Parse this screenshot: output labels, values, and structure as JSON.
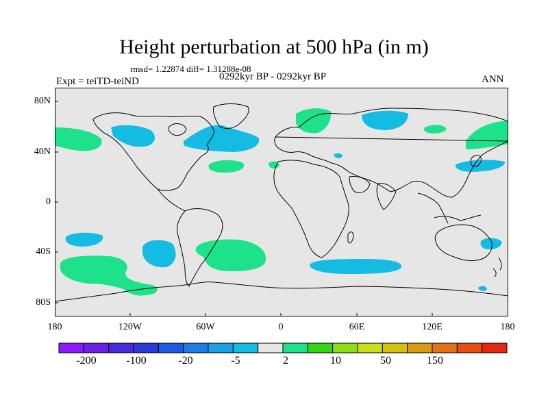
{
  "header": {
    "title": "Height perturbation at 500 hPa (in m)",
    "stats": "rmsd= 1.22874 diff= 1.31288e-08",
    "experiment": "Expt = teiTD-teiND",
    "period": "0292kyr BP - 0292kyr BP",
    "season": "ANN"
  },
  "axes": {
    "lat_labels": [
      "80N",
      "40N",
      "0",
      "40S",
      "80S"
    ],
    "lon_labels": [
      "180",
      "120W",
      "60W",
      "0",
      "60E",
      "120E",
      "180"
    ]
  },
  "colors": {
    "background": "#e6e6e6",
    "coast": "#000000",
    "negative": "#14bbe3",
    "positive": "#1ee28a"
  },
  "anomaly_regions": [
    {
      "sign": "positive",
      "desc": "NE Pacific"
    },
    {
      "sign": "negative",
      "desc": "Alaska/NW Canada"
    },
    {
      "sign": "negative",
      "desc": "Hudson Bay / N Atlantic"
    },
    {
      "sign": "positive",
      "desc": "Central N Atlantic"
    },
    {
      "sign": "positive",
      "desc": "Scandinavia"
    },
    {
      "sign": "negative",
      "desc": "W Siberia"
    },
    {
      "sign": "positive",
      "desc": "Central Asia"
    },
    {
      "sign": "positive",
      "desc": "E Siberia / Far East"
    },
    {
      "sign": "negative",
      "desc": "NW Pacific"
    },
    {
      "sign": "negative",
      "desc": "S Pacific west"
    },
    {
      "sign": "positive",
      "desc": "S Pacific / Southern Ocean"
    },
    {
      "sign": "negative",
      "desc": "SE Pacific"
    },
    {
      "sign": "positive",
      "desc": "S Atlantic"
    },
    {
      "sign": "negative",
      "desc": "S Indian Ocean"
    },
    {
      "sign": "negative",
      "desc": "New Zealand"
    }
  ],
  "colorbar": {
    "colors": [
      "#8c1aff",
      "#6a22e6",
      "#4a2ad9",
      "#2c38d8",
      "#1a5ae4",
      "#1a7ee6",
      "#1aa0e4",
      "#14bbe3",
      "#e6e6e6",
      "#1ee28a",
      "#33d617",
      "#8fde14",
      "#c8e01a",
      "#d7bf12",
      "#dc9a14",
      "#e07414",
      "#e64e14",
      "#e4280f"
    ],
    "labels": [
      "-200",
      "-100",
      "-20",
      "-5",
      "2",
      "10",
      "50",
      "150"
    ]
  }
}
